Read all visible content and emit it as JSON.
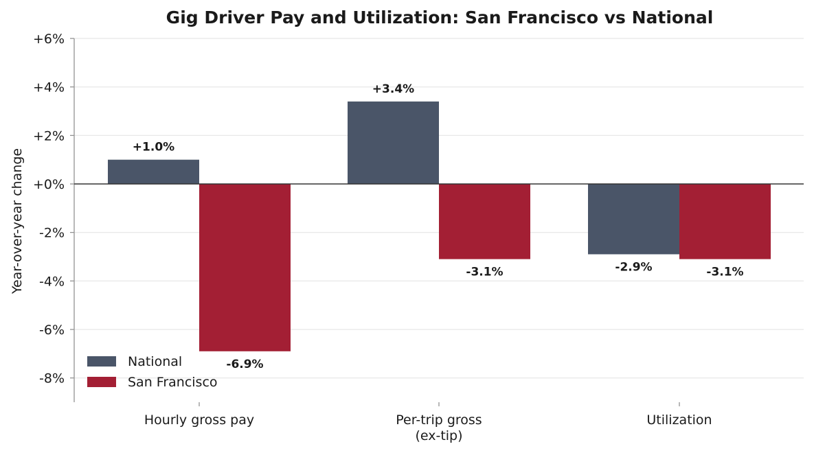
{
  "chart_data": {
    "type": "bar",
    "title": "Gig Driver Pay and Utilization: San Francisco vs National",
    "ylabel": "Year-over-year change",
    "xlabel": "",
    "categories": [
      [
        "Hourly gross pay"
      ],
      [
        "Per-trip gross",
        "(ex-tip)"
      ],
      [
        "Utilization"
      ]
    ],
    "series": [
      {
        "name": "National",
        "color": "#4a5568",
        "values": [
          1.0,
          3.4,
          -2.9
        ],
        "labels": [
          "+1.0%",
          "+3.4%",
          "-2.9%"
        ]
      },
      {
        "name": "San Francisco",
        "color": "#a31f34",
        "values": [
          -6.9,
          -3.1,
          -3.1
        ],
        "labels": [
          "-6.9%",
          "-3.1%",
          "-3.1%"
        ]
      }
    ],
    "ylim": [
      -9,
      6
    ],
    "yticks": [
      6,
      4,
      2,
      0,
      -2,
      -4,
      -6,
      -8
    ],
    "ytick_labels": [
      "+6%",
      "+4%",
      "+2%",
      "+0%",
      "-2%",
      "-4%",
      "-6%",
      "-8%"
    ],
    "grid": true,
    "legend_position": "bottom-left"
  }
}
